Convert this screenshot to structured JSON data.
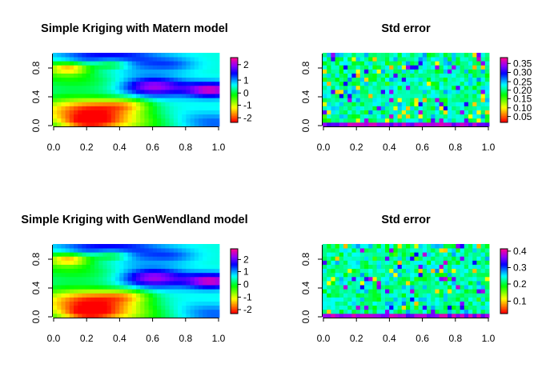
{
  "chart_data": [
    {
      "type": "heatmap",
      "title": "Simple Kriging with  Matern model",
      "xlabel": "",
      "ylabel": "",
      "xlim": [
        0,
        1
      ],
      "ylim": [
        0,
        1
      ],
      "x_ticks": [
        "0.0",
        "0.2",
        "0.4",
        "0.6",
        "0.8",
        "1.0"
      ],
      "y_ticks": [
        "0.0",
        "0.4",
        "0.8"
      ],
      "colorbar": {
        "labels": [
          "2",
          "1",
          "0",
          "-1",
          "-2"
        ],
        "range": [
          -2.7,
          2.8
        ]
      },
      "pattern": "smooth",
      "seed": 11
    },
    {
      "type": "heatmap",
      "title": "Std error",
      "xlabel": "",
      "ylabel": "",
      "xlim": [
        0,
        1
      ],
      "ylim": [
        0,
        1
      ],
      "x_ticks": [
        "0.0",
        "0.2",
        "0.4",
        "0.6",
        "0.8",
        "1.0"
      ],
      "y_ticks": [
        "0.0",
        "0.4",
        "0.8"
      ],
      "colorbar": {
        "labels": [
          "0.35",
          "0.30",
          "0.25",
          "0.20",
          "0.15",
          "0.10",
          "0.05"
        ],
        "range": [
          0.02,
          0.38
        ]
      },
      "pattern": "noise",
      "seed": 23
    },
    {
      "type": "heatmap",
      "title": "Simple Kriging with GenWendland model",
      "xlabel": "",
      "ylabel": "",
      "xlim": [
        0,
        1
      ],
      "ylim": [
        0,
        1
      ],
      "x_ticks": [
        "0.0",
        "0.2",
        "0.4",
        "0.6",
        "0.8",
        "1.0"
      ],
      "y_ticks": [
        "0.0",
        "0.4",
        "0.8"
      ],
      "colorbar": {
        "labels": [
          "2",
          "1",
          "0",
          "-1",
          "-2"
        ],
        "range": [
          -2.7,
          2.8
        ]
      },
      "pattern": "smooth",
      "seed": 11
    },
    {
      "type": "heatmap",
      "title": "Std error",
      "xlabel": "",
      "ylabel": "",
      "xlim": [
        0,
        1
      ],
      "ylim": [
        0,
        1
      ],
      "x_ticks": [
        "0.0",
        "0.2",
        "0.4",
        "0.6",
        "0.8",
        "1.0"
      ],
      "y_ticks": [
        "0.0",
        "0.4",
        "0.8"
      ],
      "colorbar": {
        "labels": [
          "0.4",
          "0.3",
          "0.2",
          "0.1"
        ],
        "range": [
          0.02,
          0.42
        ]
      },
      "pattern": "noise",
      "seed": 37
    }
  ]
}
